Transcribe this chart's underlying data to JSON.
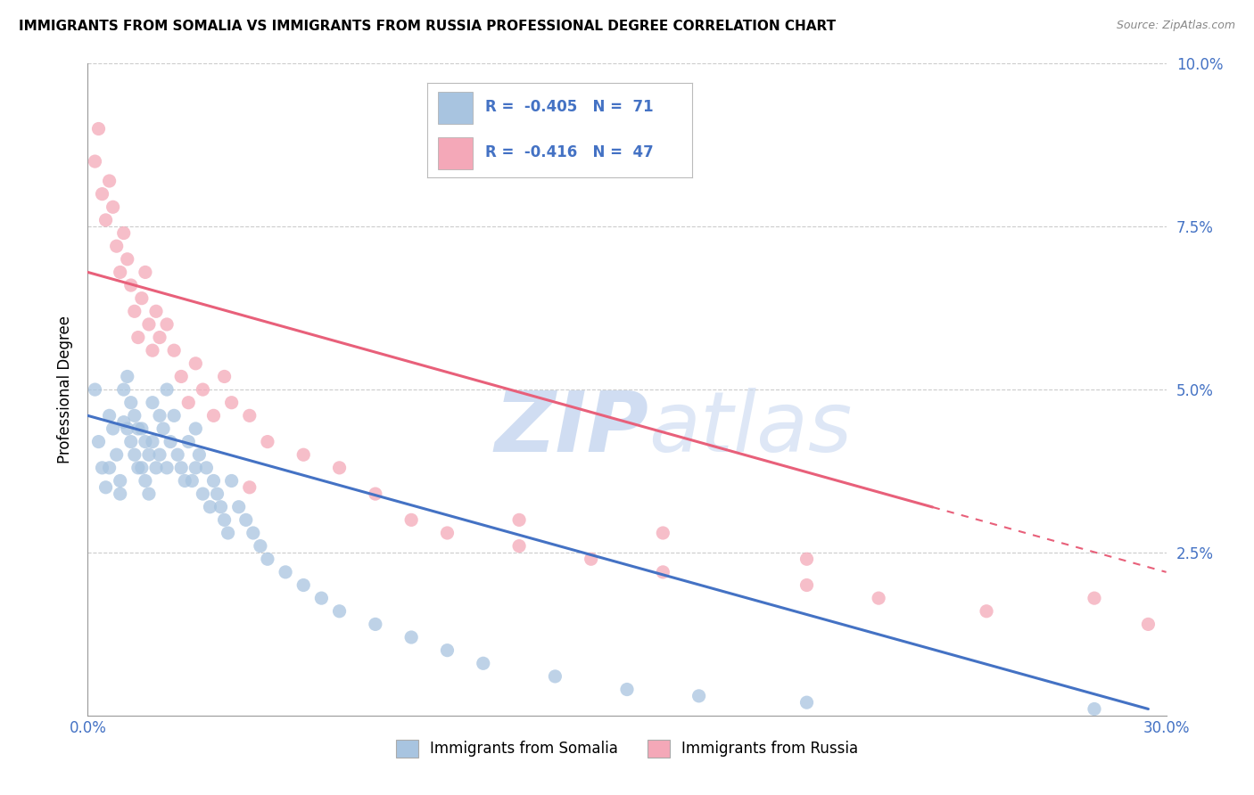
{
  "title": "IMMIGRANTS FROM SOMALIA VS IMMIGRANTS FROM RUSSIA PROFESSIONAL DEGREE CORRELATION CHART",
  "source": "Source: ZipAtlas.com",
  "ylabel": "Professional Degree",
  "xlim": [
    0.0,
    0.3
  ],
  "ylim": [
    0.0,
    0.1
  ],
  "r_somalia": -0.405,
  "n_somalia": 71,
  "r_russia": -0.416,
  "n_russia": 47,
  "somalia_color": "#a8c4e0",
  "russia_color": "#f4a8b8",
  "somalia_line_color": "#4472c4",
  "russia_line_color": "#e8607a",
  "legend_somalia": "Immigrants from Somalia",
  "legend_russia": "Immigrants from Russia",
  "background_color": "#ffffff",
  "watermark_zip": "ZIP",
  "watermark_atlas": "atlas",
  "somalia_x": [
    0.002,
    0.003,
    0.004,
    0.005,
    0.006,
    0.006,
    0.007,
    0.008,
    0.009,
    0.009,
    0.01,
    0.01,
    0.011,
    0.011,
    0.012,
    0.012,
    0.013,
    0.013,
    0.014,
    0.014,
    0.015,
    0.015,
    0.016,
    0.016,
    0.017,
    0.017,
    0.018,
    0.018,
    0.019,
    0.02,
    0.02,
    0.021,
    0.022,
    0.022,
    0.023,
    0.024,
    0.025,
    0.026,
    0.027,
    0.028,
    0.029,
    0.03,
    0.03,
    0.031,
    0.032,
    0.033,
    0.034,
    0.035,
    0.036,
    0.037,
    0.038,
    0.039,
    0.04,
    0.042,
    0.044,
    0.046,
    0.048,
    0.05,
    0.055,
    0.06,
    0.065,
    0.07,
    0.08,
    0.09,
    0.1,
    0.11,
    0.13,
    0.15,
    0.17,
    0.2,
    0.28
  ],
  "somalia_y": [
    0.05,
    0.042,
    0.038,
    0.035,
    0.046,
    0.038,
    0.044,
    0.04,
    0.036,
    0.034,
    0.05,
    0.045,
    0.052,
    0.044,
    0.048,
    0.042,
    0.046,
    0.04,
    0.044,
    0.038,
    0.044,
    0.038,
    0.042,
    0.036,
    0.04,
    0.034,
    0.048,
    0.042,
    0.038,
    0.046,
    0.04,
    0.044,
    0.05,
    0.038,
    0.042,
    0.046,
    0.04,
    0.038,
    0.036,
    0.042,
    0.036,
    0.044,
    0.038,
    0.04,
    0.034,
    0.038,
    0.032,
    0.036,
    0.034,
    0.032,
    0.03,
    0.028,
    0.036,
    0.032,
    0.03,
    0.028,
    0.026,
    0.024,
    0.022,
    0.02,
    0.018,
    0.016,
    0.014,
    0.012,
    0.01,
    0.008,
    0.006,
    0.004,
    0.003,
    0.002,
    0.001
  ],
  "russia_x": [
    0.002,
    0.003,
    0.004,
    0.005,
    0.006,
    0.007,
    0.008,
    0.009,
    0.01,
    0.011,
    0.012,
    0.013,
    0.014,
    0.015,
    0.016,
    0.017,
    0.018,
    0.019,
    0.02,
    0.022,
    0.024,
    0.026,
    0.028,
    0.03,
    0.032,
    0.035,
    0.038,
    0.04,
    0.045,
    0.05,
    0.06,
    0.07,
    0.08,
    0.09,
    0.1,
    0.12,
    0.14,
    0.16,
    0.2,
    0.22,
    0.25,
    0.28,
    0.295,
    0.045,
    0.12,
    0.16,
    0.2
  ],
  "russia_y": [
    0.085,
    0.09,
    0.08,
    0.076,
    0.082,
    0.078,
    0.072,
    0.068,
    0.074,
    0.07,
    0.066,
    0.062,
    0.058,
    0.064,
    0.068,
    0.06,
    0.056,
    0.062,
    0.058,
    0.06,
    0.056,
    0.052,
    0.048,
    0.054,
    0.05,
    0.046,
    0.052,
    0.048,
    0.046,
    0.042,
    0.04,
    0.038,
    0.034,
    0.03,
    0.028,
    0.026,
    0.024,
    0.022,
    0.02,
    0.018,
    0.016,
    0.018,
    0.014,
    0.035,
    0.03,
    0.028,
    0.024
  ]
}
